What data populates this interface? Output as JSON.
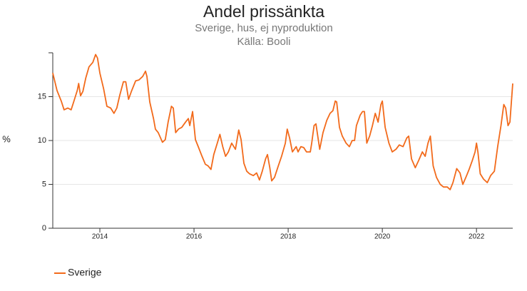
{
  "chart_data": {
    "type": "line",
    "title": "Andel prissänkta",
    "subtitle": "Sverige, hus, ej nyproduktion",
    "source": "Källa: Booli",
    "y_label": "%",
    "xlim": [
      2013,
      2022.77
    ],
    "xticks": [
      2014,
      2016,
      2018,
      2020,
      2022
    ],
    "ylim": [
      0,
      20
    ],
    "yticks": [
      0,
      5,
      10,
      15
    ],
    "grid": true,
    "legend": "bottom-left",
    "x": [
      2013.0,
      2013.09,
      2013.18,
      2013.24,
      2013.32,
      2013.39,
      2013.45,
      2013.52,
      2013.55,
      2013.59,
      2013.64,
      2013.7,
      2013.77,
      2013.85,
      2013.91,
      2013.95,
      2014.0,
      2014.08,
      2014.15,
      2014.23,
      2014.3,
      2014.36,
      2014.42,
      2014.5,
      2014.55,
      2014.61,
      2014.67,
      2014.76,
      2014.83,
      2014.91,
      2014.97,
      2015.0,
      2015.06,
      2015.14,
      2015.18,
      2015.24,
      2015.33,
      2015.39,
      2015.45,
      2015.52,
      2015.56,
      2015.61,
      2015.67,
      2015.74,
      2015.82,
      2015.88,
      2015.91,
      2015.97,
      2016.03,
      2016.09,
      2016.17,
      2016.24,
      2016.3,
      2016.36,
      2016.42,
      2016.5,
      2016.55,
      2016.61,
      2016.67,
      2016.73,
      2016.8,
      2016.88,
      2016.95,
      2017.0,
      2017.06,
      2017.12,
      2017.18,
      2017.26,
      2017.33,
      2017.39,
      2017.45,
      2017.52,
      2017.56,
      2017.61,
      2017.65,
      2017.71,
      2017.79,
      2017.86,
      2017.94,
      2017.98,
      2018.03,
      2018.09,
      2018.17,
      2018.21,
      2018.27,
      2018.33,
      2018.39,
      2018.47,
      2018.5,
      2018.55,
      2018.59,
      2018.67,
      2018.74,
      2018.82,
      2018.89,
      2018.95,
      2019.0,
      2019.03,
      2019.09,
      2019.15,
      2019.23,
      2019.3,
      2019.36,
      2019.41,
      2019.45,
      2019.53,
      2019.58,
      2019.62,
      2019.67,
      2019.73,
      2019.79,
      2019.85,
      2019.91,
      2019.97,
      2020.0,
      2020.06,
      2020.14,
      2020.21,
      2020.29,
      2020.36,
      2020.44,
      2020.52,
      2020.56,
      2020.62,
      2020.7,
      2020.77,
      2020.85,
      2020.91,
      2020.97,
      2021.02,
      2021.08,
      2021.15,
      2021.23,
      2021.3,
      2021.38,
      2021.44,
      2021.5,
      2021.58,
      2021.65,
      2021.71,
      2021.79,
      2021.85,
      2021.91,
      2021.97,
      2022.0,
      2022.03,
      2022.08,
      2022.15,
      2022.23,
      2022.3,
      2022.38,
      2022.45,
      2022.52,
      2022.58,
      2022.62,
      2022.67,
      2022.71,
      2022.77
    ],
    "series": [
      {
        "name": "Sverige",
        "color": "#f26a1b",
        "values": [
          17.7,
          15.7,
          14.5,
          13.5,
          13.7,
          13.5,
          14.5,
          15.7,
          16.5,
          15.1,
          15.6,
          17.1,
          18.4,
          18.9,
          19.8,
          19.4,
          17.7,
          15.9,
          13.9,
          13.7,
          13.1,
          13.7,
          15.1,
          16.7,
          16.7,
          14.7,
          15.6,
          16.8,
          16.9,
          17.3,
          17.9,
          17.3,
          14.4,
          12.5,
          11.3,
          10.9,
          9.8,
          10.1,
          12.1,
          13.9,
          13.7,
          10.9,
          11.3,
          11.5,
          12.1,
          12.5,
          11.7,
          13.3,
          10.1,
          9.3,
          8.2,
          7.3,
          7.1,
          6.7,
          8.4,
          9.8,
          10.7,
          9.3,
          8.2,
          8.7,
          9.7,
          9.0,
          11.2,
          10.1,
          7.4,
          6.5,
          6.2,
          6.0,
          6.3,
          5.5,
          6.5,
          7.9,
          8.4,
          6.9,
          5.4,
          5.8,
          7.1,
          8.2,
          9.7,
          11.3,
          10.3,
          8.7,
          9.3,
          8.7,
          9.3,
          9.2,
          8.7,
          8.7,
          9.7,
          11.7,
          11.9,
          9.0,
          10.9,
          12.3,
          13.1,
          13.4,
          14.5,
          14.4,
          11.5,
          10.5,
          9.7,
          9.3,
          10.0,
          10.0,
          11.7,
          12.9,
          13.3,
          13.3,
          9.7,
          10.5,
          11.7,
          13.1,
          12.1,
          14.1,
          14.5,
          11.5,
          9.7,
          8.7,
          9.0,
          9.5,
          9.3,
          10.3,
          10.5,
          7.9,
          6.9,
          7.7,
          8.7,
          8.2,
          9.7,
          10.5,
          7.1,
          5.8,
          5.0,
          4.7,
          4.7,
          4.4,
          5.2,
          6.8,
          6.3,
          5.0,
          6.0,
          6.8,
          7.7,
          8.7,
          9.7,
          8.7,
          6.2,
          5.6,
          5.2,
          6.0,
          6.5,
          9.3,
          11.7,
          14.1,
          13.7,
          11.7,
          12.1,
          16.5
        ]
      }
    ]
  }
}
